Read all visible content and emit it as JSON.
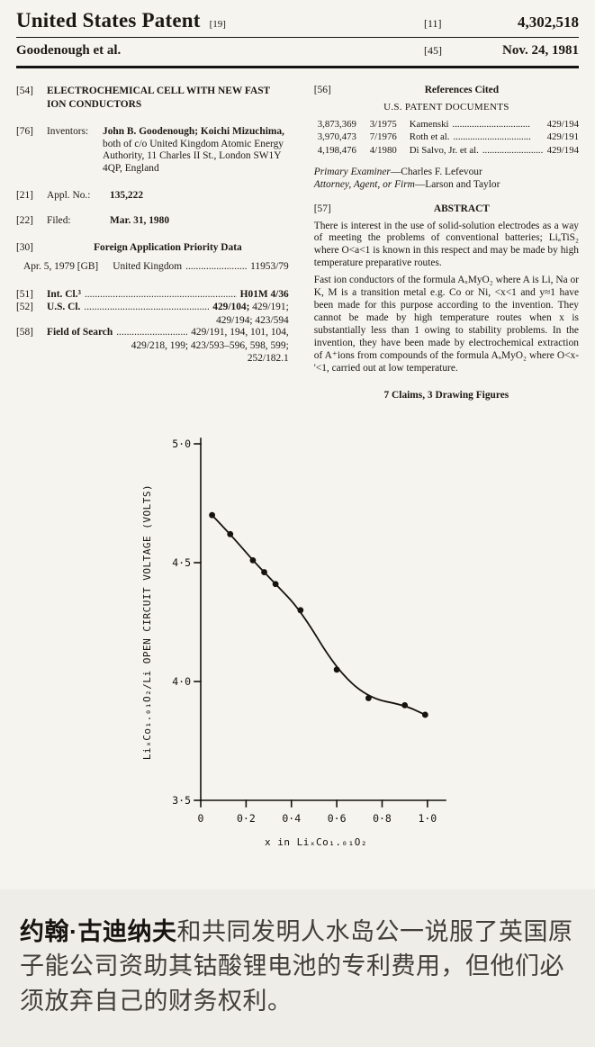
{
  "header": {
    "title": "United States Patent",
    "kind_code": "[19]",
    "number_label": "[11]",
    "number": "4,302,518",
    "authors": "Goodenough et al.",
    "date_label": "[45]",
    "date": "Nov. 24, 1981"
  },
  "left": {
    "title_tag": "[54]",
    "title": "ELECTROCHEMICAL CELL WITH NEW FAST ION CONDUCTORS",
    "inventors_tag": "[76]",
    "inventors_label": "Inventors:",
    "inventors_names": "John B. Goodenough; Koichi Mizuchima,",
    "inventors_rest": " both of c/o United Kingdom Atomic Energy Authority, 11 Charles II St., London SW1Y 4QP, England",
    "appl_tag": "[21]",
    "appl_label": "Appl. No.:",
    "appl_value": "135,222",
    "filed_tag": "[22]",
    "filed_label": "Filed:",
    "filed_value": "Mar. 31, 1980",
    "priority_tag": "[30]",
    "priority_title": "Foreign Application Priority Data",
    "priority_date": "Apr. 5, 1979 [GB]",
    "priority_country": "United Kingdom",
    "priority_dots": "...............................",
    "priority_number": "11953/79",
    "intcl_tag": "[51]",
    "intcl_label": "Int. Cl.³",
    "intcl_dots": "......................................................................",
    "intcl_value": "H01M 4/36",
    "uscl_tag": "[52]",
    "uscl_label": "U.S. Cl.",
    "uscl_dots": "......................................................................",
    "uscl_value_bold": "429/104;",
    "uscl_value_rest": " 429/191;",
    "uscl_line2": "429/194; 423/594",
    "fos_tag": "[58]",
    "fos_label": "Field of Search",
    "fos_dots": "..............................",
    "fos_line1": "429/191, 194, 101, 104,",
    "fos_line2": "429/218, 199; 423/593–596, 598, 599;",
    "fos_line3": "252/182.1"
  },
  "right": {
    "refs_tag": "[56]",
    "refs_title": "References Cited",
    "refs_subtitle": "U.S. PATENT DOCUMENTS",
    "patents": [
      {
        "no": "3,873,369",
        "date": "3/1975",
        "name": "Kamenski",
        "dots": "................................",
        "cls": "429/194"
      },
      {
        "no": "3,970,473",
        "date": "7/1976",
        "name": "Roth et al.",
        "dots": "................................",
        "cls": "429/191"
      },
      {
        "no": "4,198,476",
        "date": "4/1980",
        "name": "Di Salvo, Jr. et al.",
        "dots": "................................",
        "cls": "429/194"
      }
    ],
    "examiner_label": "Primary Examiner",
    "examiner_value": "—Charles F. Lefevour",
    "attorney_label": "Attorney, Agent, or Firm",
    "attorney_value": "—Larson and Taylor",
    "abstract_tag": "[57]",
    "abstract_title": "ABSTRACT",
    "abstract_p1": "There is interest in the use of solid-solution electrodes as a way of meeting the problems of conventional batteries; LiₐTiS₂ where O<a<1 is known in this respect and may be made by high temperature preparative routes.",
    "abstract_p2": "Fast ion conductors of the formula AₓMyO₂ where A is Li, Na or K, M is a transition metal e.g. Co or Ni, <x<1 and y≈1 have been made for this purpose according to the invention. They cannot be made by high temperature routes when x is substantially less than 1 owing to stability problems. In the invention, they have been made by electrochemical extraction of A⁺ions from compounds of the formula AₓMyO₂ where O<x-'<1, carried out at low temperature.",
    "claims_note": "7 Claims, 3 Drawing Figures"
  },
  "chart_data": {
    "type": "line",
    "x": [
      0.05,
      0.13,
      0.23,
      0.28,
      0.33,
      0.44,
      0.6,
      0.74,
      0.9,
      0.99
    ],
    "y": [
      4.7,
      4.62,
      4.51,
      4.46,
      4.41,
      4.3,
      4.05,
      3.93,
      3.9,
      3.86
    ],
    "xlabel": "x in LiₓCo₁.₀₁O₂",
    "ylabel": "LiₓCo₁.₀₁O₂/Li OPEN CIRCUIT VOLTAGE (VOLTS)",
    "xlim": [
      0,
      1.08
    ],
    "ylim": [
      3.5,
      5.0
    ],
    "xticks": [
      0,
      0.2,
      0.4,
      0.6,
      0.8,
      1.0
    ],
    "xtick_labels": [
      "0",
      "0·2",
      "0·4",
      "0·6",
      "0·8",
      "1·0"
    ],
    "yticks": [
      3.5,
      4.0,
      4.5,
      5.0
    ],
    "ytick_labels": [
      "3·5",
      "4·0",
      "4·5",
      "5·0"
    ],
    "grid": false,
    "legend": "none",
    "marker": "filled-circle"
  },
  "caption": {
    "bold": "约翰·古迪纳夫",
    "text": "和共同发明人水岛公一说服了英国原子能公司资助其钴酸锂电池的专利费用，但他们必须放弃自己的财务权利。"
  }
}
